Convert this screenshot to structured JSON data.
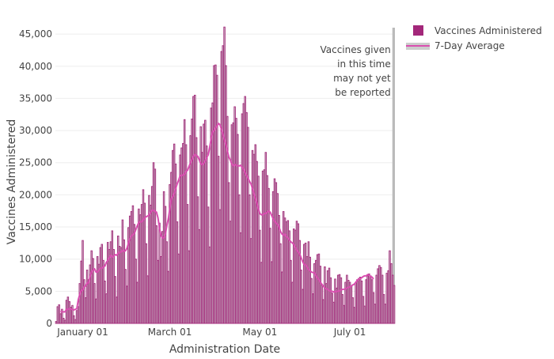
{
  "chart_data": {
    "type": "bar",
    "xlabel": "Administration Date",
    "ylabel": "Vaccines Administered",
    "ylim": [
      0,
      46000
    ],
    "yticks": [
      0,
      5000,
      10000,
      15000,
      20000,
      25000,
      30000,
      35000,
      40000,
      45000
    ],
    "ytick_labels": [
      "0",
      "5,000",
      "10,000",
      "15,000",
      "20,000",
      "25,000",
      "30,000",
      "35,000",
      "40,000",
      "45,000"
    ],
    "x_start": "2020-12-14",
    "x_end": "2021-07-31",
    "xticks": [
      "2021-01-01",
      "2021-03-01",
      "2021-05-01",
      "2021-07-01"
    ],
    "xtick_labels": [
      "January 01",
      "March 01",
      "May 01",
      "July 01"
    ],
    "grid": true,
    "legend_position": "top-right",
    "colors": {
      "bars": "#a3277a",
      "bar_fill": "#cccccc",
      "average": "#d94fb0",
      "unreported": "#bbbbbb"
    },
    "series": [
      {
        "name": "Vaccines Administered",
        "kind": "bar",
        "values": [
          300,
          2600,
          2900,
          1500,
          2200,
          800,
          500,
          3600,
          4100,
          3400,
          2500,
          2800,
          1200,
          600,
          2000,
          2600,
          6200,
          9700,
          12900,
          6800,
          4000,
          8300,
          6800,
          9100,
          11300,
          10100,
          6200,
          3800,
          10400,
          9200,
          11800,
          12300,
          9800,
          6600,
          4600,
          12600,
          11500,
          12700,
          14400,
          11500,
          7300,
          4100,
          13600,
          12000,
          11800,
          16100,
          13000,
          8400,
          5800,
          14900,
          16700,
          17400,
          18300,
          15400,
          10000,
          6400,
          17800,
          16900,
          18500,
          20800,
          18700,
          12400,
          7400,
          19900,
          18400,
          21300,
          25000,
          24000,
          15200,
          9800,
          15600,
          10400,
          14300,
          20500,
          18200,
          12700,
          8100,
          21600,
          23500,
          26900,
          27900,
          24800,
          15800,
          10800,
          26200,
          27300,
          28000,
          31700,
          27800,
          18500,
          11300,
          29200,
          31800,
          35300,
          35500,
          28900,
          19700,
          14600,
          30600,
          26600,
          31000,
          31600,
          27600,
          18100,
          11900,
          33500,
          34300,
          40100,
          40200,
          38600,
          26000,
          17700,
          42300,
          43200,
          46100,
          40100,
          32200,
          21900,
          15900,
          30900,
          31200,
          33700,
          31900,
          29400,
          20000,
          14100,
          32600,
          34200,
          35300,
          32800,
          30500,
          20000,
          13200,
          26900,
          26300,
          27800,
          25200,
          22900,
          14500,
          9500,
          23700,
          23900,
          26600,
          23000,
          21000,
          14800,
          9600,
          20500,
          22500,
          21900,
          20200,
          16800,
          12400,
          8000,
          17400,
          16400,
          15800,
          16000,
          14400,
          9800,
          6400,
          14700,
          14500,
          15900,
          15500,
          12900,
          8300,
          5300,
          12300,
          12500,
          10400,
          12700,
          10300,
          7000,
          4600,
          9300,
          9800,
          10700,
          10800,
          8900,
          6000,
          3700,
          8800,
          6200,
          8200,
          8600,
          7100,
          4700,
          3300,
          6900,
          5500,
          7500,
          7600,
          7100,
          4500,
          2800,
          6400,
          7500,
          6700,
          6400,
          5900,
          4000,
          2500,
          6400,
          6800,
          7000,
          7200,
          6600,
          4200,
          2700,
          6800,
          7400,
          7700,
          7400,
          6800,
          4800,
          3000,
          7500,
          8500,
          9000,
          8700,
          7500,
          4500,
          3000,
          7800,
          8200,
          11300,
          9300,
          7500,
          5900
        ]
      },
      {
        "name": "7-Day Average",
        "kind": "line",
        "values": [
          null,
          null,
          null,
          1900,
          1800,
          1800,
          1800,
          2200,
          2200,
          2300,
          2200,
          2200,
          2100,
          2200,
          2300,
          3700,
          4500,
          5100,
          5200,
          5700,
          5800,
          6300,
          6300,
          7300,
          8000,
          8300,
          8500,
          8000,
          8000,
          8300,
          8600,
          8600,
          8800,
          8900,
          9500,
          9800,
          10200,
          10600,
          10300,
          10500,
          10700,
          10600,
          10900,
          11100,
          11100,
          11400,
          11200,
          11300,
          11700,
          12500,
          13200,
          13600,
          13800,
          14000,
          14600,
          15200,
          15700,
          15800,
          15800,
          16100,
          16400,
          16600,
          16700,
          16900,
          17300,
          17600,
          17600,
          17400,
          17300,
          16400,
          14800,
          13700,
          13300,
          13300,
          13900,
          15200,
          16300,
          17800,
          19400,
          19700,
          20200,
          21000,
          21700,
          22300,
          23000,
          23000,
          23100,
          23200,
          23700,
          23800,
          24400,
          25000,
          25500,
          26000,
          26300,
          26100,
          26000,
          25400,
          24800,
          24700,
          24900,
          25300,
          25800,
          26200,
          27400,
          28700,
          29800,
          30000,
          30400,
          30700,
          31100,
          30900,
          30200,
          29400,
          28600,
          27800,
          26800,
          25900,
          25400,
          24800,
          24500,
          24700,
          24600,
          24500,
          24500,
          24600,
          24300,
          24000,
          23400,
          23000,
          22600,
          22100,
          21700,
          21000,
          20200,
          19400,
          18700,
          17800,
          17100,
          16900,
          16900,
          17100,
          17100,
          17300,
          17500,
          17300,
          16800,
          16300,
          15900,
          15600,
          15400,
          15000,
          14300,
          13900,
          13700,
          13900,
          13500,
          13300,
          13000,
          12700,
          12500,
          12300,
          11800,
          11400,
          11100,
          10800,
          10200,
          9600,
          9200,
          9100,
          8800,
          8400,
          8200,
          8000,
          7900,
          7900,
          7400,
          7100,
          6800,
          6400,
          6100,
          5800,
          5500,
          5400,
          5300,
          5100,
          5000,
          5000,
          4900,
          4900,
          5000,
          5000,
          5100,
          5200,
          5300,
          5300,
          5400,
          5500,
          5600,
          5700,
          5800,
          6000,
          6100,
          6400,
          6700,
          6900,
          7000,
          7100,
          7300,
          7400,
          7400,
          7600,
          7500,
          7300,
          7200,
          6900
        ]
      }
    ],
    "legend": [
      "Vaccines Administered",
      "7-Day Average"
    ],
    "annotation": {
      "lines": [
        "Vaccines given",
        "in this time",
        "may not yet",
        "be reported"
      ],
      "start": "2021-07-25",
      "end": "2021-07-31"
    }
  }
}
